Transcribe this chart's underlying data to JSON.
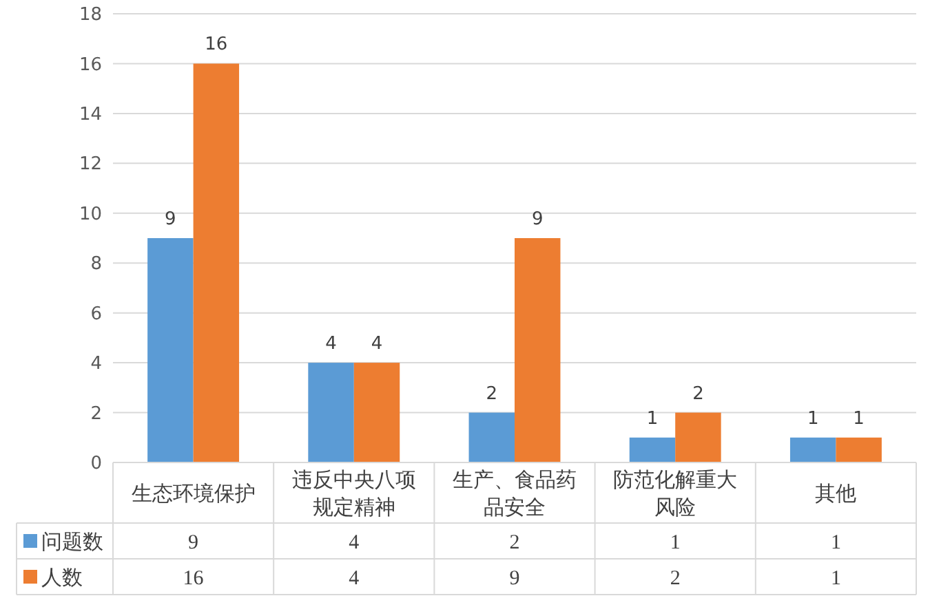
{
  "chart_data": {
    "type": "bar",
    "categories": [
      "生态环境保护",
      "违反中央八项规定精神",
      "生产、食品药品安全",
      "防范化解重大风险",
      "其他"
    ],
    "series": [
      {
        "name": "问题数",
        "color": "#5b9bd5",
        "values": [
          9,
          4,
          2,
          1,
          1
        ],
        "value_labels": [
          "9",
          "4",
          "2",
          "1",
          "1"
        ]
      },
      {
        "name": "人数",
        "color": "#ed7d31",
        "values": [
          16,
          4,
          9,
          2,
          1
        ],
        "value_labels": [
          "16",
          "4",
          "9",
          "2",
          "1"
        ]
      }
    ],
    "ylim": [
      0,
      18
    ],
    "yticks": [
      0,
      2,
      4,
      6,
      8,
      10,
      12,
      14,
      16,
      18
    ],
    "grid": "y",
    "data_labels": true,
    "legend": "bottom"
  }
}
